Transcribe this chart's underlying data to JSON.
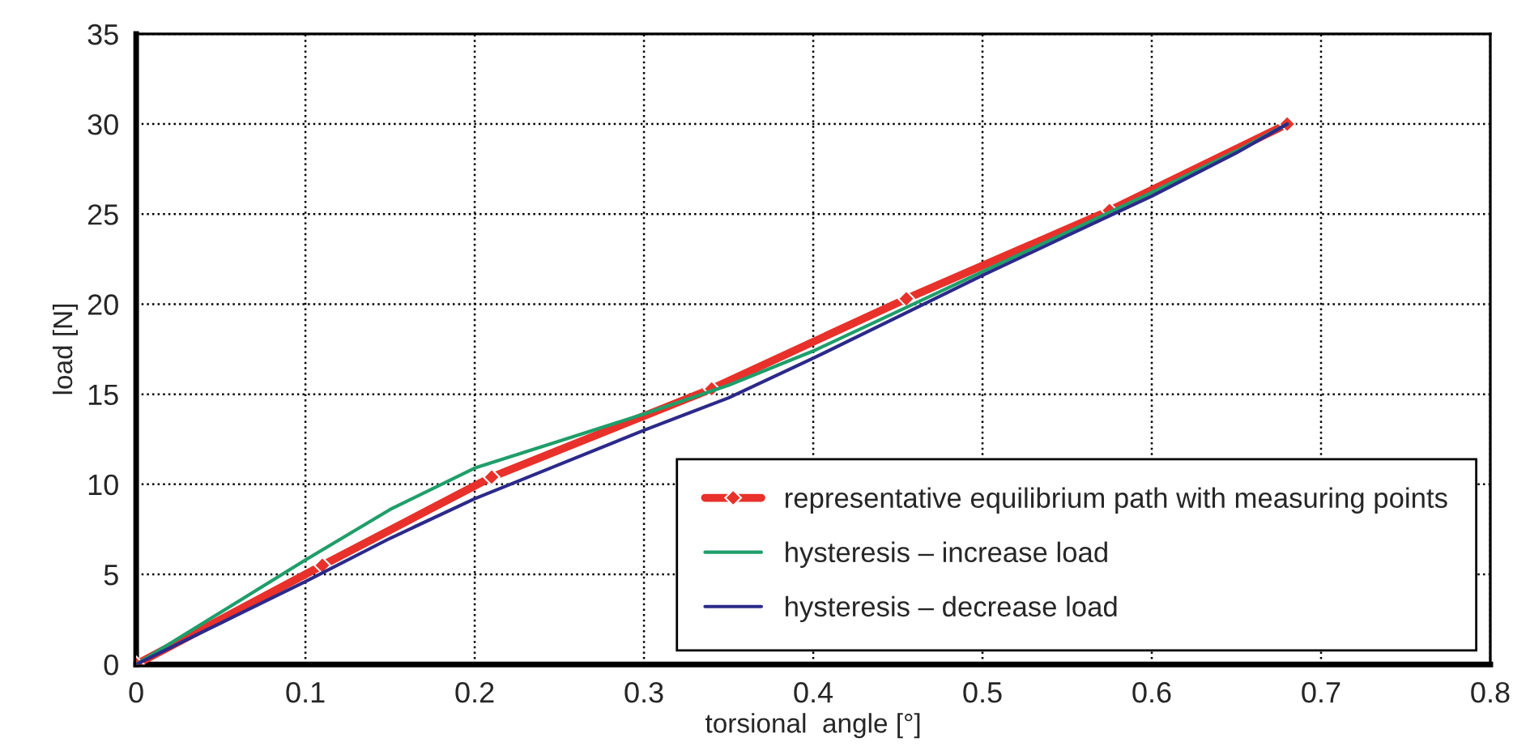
{
  "chart_data": {
    "type": "line",
    "xlabel": "torsional  angle [°]",
    "ylabel": "load [N]",
    "xlim": [
      0,
      0.8
    ],
    "ylim": [
      0,
      35
    ],
    "xticks": [
      0,
      0.1,
      0.2,
      0.3,
      0.4,
      0.5,
      0.6,
      0.7,
      0.8
    ],
    "yticks": [
      0,
      5,
      10,
      15,
      20,
      25,
      30,
      35
    ],
    "grid": true,
    "legend": "bottom right",
    "series": [
      {
        "name": "representative equilibrium path with measuring points",
        "color": "#e8312a",
        "marker": "diamond",
        "x": [
          0,
          0.11,
          0.21,
          0.34,
          0.455,
          0.575,
          0.68
        ],
        "values": [
          0,
          5.5,
          10.4,
          15.3,
          20.3,
          25.2,
          30
        ]
      },
      {
        "name": "hysteresis – increase load",
        "color": "#1f9e6a",
        "marker": "none",
        "x": [
          0,
          0.05,
          0.1,
          0.15,
          0.2,
          0.25,
          0.3,
          0.35,
          0.4,
          0.45,
          0.5,
          0.55,
          0.6,
          0.65,
          0.68
        ],
        "values": [
          0,
          2.9,
          5.8,
          8.6,
          10.9,
          12.4,
          13.9,
          15.5,
          17.4,
          19.6,
          21.8,
          24.0,
          26.2,
          28.5,
          30
        ]
      },
      {
        "name": "hysteresis – decrease load",
        "color": "#2b2a8a",
        "marker": "none",
        "x": [
          0,
          0.05,
          0.1,
          0.15,
          0.2,
          0.25,
          0.3,
          0.35,
          0.4,
          0.45,
          0.5,
          0.55,
          0.6,
          0.65,
          0.68
        ],
        "values": [
          0,
          2.3,
          4.6,
          7.0,
          9.2,
          11.1,
          13.0,
          14.8,
          17.0,
          19.3,
          21.6,
          23.8,
          26.0,
          28.4,
          30
        ]
      }
    ]
  }
}
